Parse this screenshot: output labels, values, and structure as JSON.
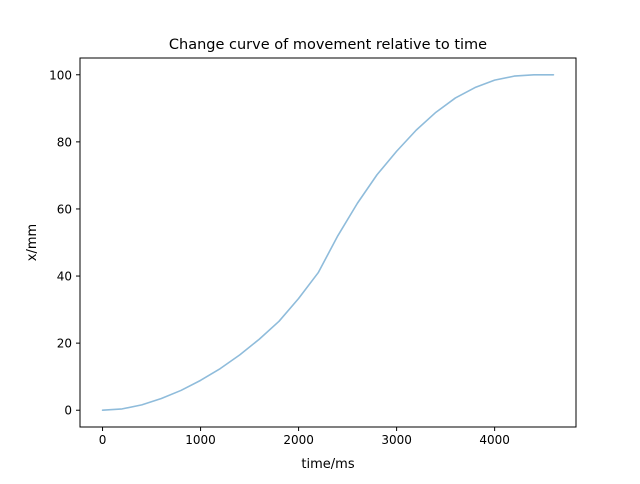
{
  "chart_data": {
    "type": "line",
    "title": "Change curve of movement relative to time",
    "xlabel": "time/ms",
    "ylabel": "x/mm",
    "xlim": [
      -230,
      4830
    ],
    "ylim": [
      -5,
      105
    ],
    "xticks": [
      0,
      1000,
      2000,
      3000,
      4000
    ],
    "yticks": [
      0,
      20,
      40,
      60,
      80,
      100
    ],
    "grid": false,
    "legend": "none",
    "series": [
      {
        "color": "#8fbcdb",
        "x": [
          0,
          200,
          400,
          600,
          800,
          1000,
          1200,
          1400,
          1600,
          1800,
          2000,
          2200,
          2300,
          2400,
          2600,
          2800,
          3000,
          3200,
          3400,
          3600,
          3800,
          4000,
          4200,
          4400,
          4600
        ],
        "y": [
          0,
          0.4,
          1.6,
          3.5,
          5.9,
          8.9,
          12.4,
          16.5,
          21.2,
          26.5,
          33.3,
          41.0,
          46.5,
          52.0,
          61.7,
          70.2,
          77.2,
          83.5,
          88.8,
          93.1,
          96.2,
          98.4,
          99.6,
          100.0,
          100.0
        ]
      }
    ]
  }
}
